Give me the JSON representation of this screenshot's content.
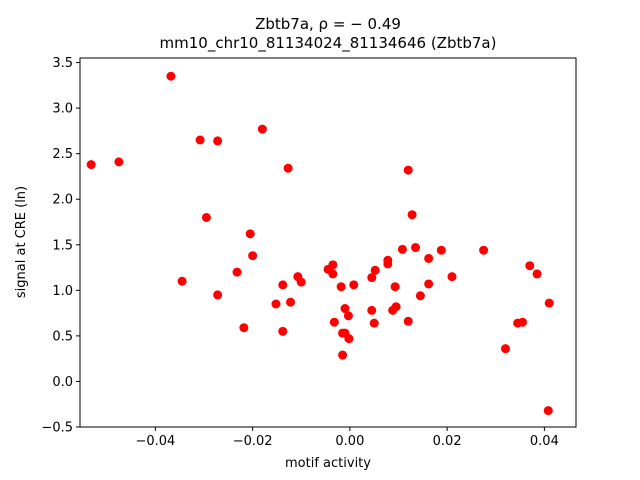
{
  "chart_data": {
    "type": "scatter",
    "title_line1": "Zbtb7a, ρ = − 0.49",
    "title_line2": "mm10_chr10_81134024_81134646 (Zbtb7a)",
    "xlabel": "motif activity",
    "ylabel": "signal at CRE (ln)",
    "xlim": [
      -0.0555,
      0.0465
    ],
    "ylim": [
      -0.5,
      3.55
    ],
    "xticks": [
      -0.04,
      -0.02,
      0.0,
      0.02,
      0.04
    ],
    "xtick_labels": [
      "−0.04",
      "−0.02",
      "0.00",
      "0.02",
      "0.04"
    ],
    "yticks": [
      -0.5,
      0.0,
      0.5,
      1.0,
      1.5,
      2.0,
      2.5,
      3.0,
      3.5
    ],
    "ytick_labels": [
      "−0.5",
      "0.0",
      "0.5",
      "1.0",
      "1.5",
      "2.0",
      "2.5",
      "3.0",
      "3.5"
    ],
    "grid": false,
    "marker_color": "#ff0000",
    "points": [
      {
        "x": -0.0532,
        "y": 2.38
      },
      {
        "x": -0.0475,
        "y": 2.41
      },
      {
        "x": -0.0368,
        "y": 3.35
      },
      {
        "x": -0.0345,
        "y": 1.1
      },
      {
        "x": -0.0308,
        "y": 2.65
      },
      {
        "x": -0.0295,
        "y": 1.8
      },
      {
        "x": -0.0272,
        "y": 2.64
      },
      {
        "x": -0.0272,
        "y": 0.95
      },
      {
        "x": -0.0232,
        "y": 1.2
      },
      {
        "x": -0.0218,
        "y": 0.59
      },
      {
        "x": -0.0205,
        "y": 1.62
      },
      {
        "x": -0.02,
        "y": 1.38
      },
      {
        "x": -0.018,
        "y": 2.77
      },
      {
        "x": -0.0152,
        "y": 0.85
      },
      {
        "x": -0.0138,
        "y": 1.06
      },
      {
        "x": -0.0138,
        "y": 0.55
      },
      {
        "x": -0.0127,
        "y": 2.34
      },
      {
        "x": -0.0122,
        "y": 0.87
      },
      {
        "x": -0.0107,
        "y": 1.15
      },
      {
        "x": -0.01,
        "y": 1.09
      },
      {
        "x": -0.0045,
        "y": 1.23
      },
      {
        "x": -0.0035,
        "y": 1.28
      },
      {
        "x": -0.0035,
        "y": 1.18
      },
      {
        "x": -0.0032,
        "y": 0.65
      },
      {
        "x": -0.0018,
        "y": 1.04
      },
      {
        "x": -0.0015,
        "y": 0.53
      },
      {
        "x": -0.0015,
        "y": 0.29
      },
      {
        "x": -0.001,
        "y": 0.8
      },
      {
        "x": -0.001,
        "y": 0.53
      },
      {
        "x": -0.0003,
        "y": 0.72
      },
      {
        "x": -0.0002,
        "y": 0.47
      },
      {
        "x": 0.0008,
        "y": 1.06
      },
      {
        "x": 0.0045,
        "y": 1.14
      },
      {
        "x": 0.0045,
        "y": 0.78
      },
      {
        "x": 0.005,
        "y": 0.64
      },
      {
        "x": 0.0052,
        "y": 1.22
      },
      {
        "x": 0.0078,
        "y": 1.33
      },
      {
        "x": 0.0078,
        "y": 1.29
      },
      {
        "x": 0.0088,
        "y": 0.78
      },
      {
        "x": 0.0093,
        "y": 1.04
      },
      {
        "x": 0.0095,
        "y": 0.82
      },
      {
        "x": 0.0108,
        "y": 1.45
      },
      {
        "x": 0.012,
        "y": 2.32
      },
      {
        "x": 0.012,
        "y": 0.66
      },
      {
        "x": 0.0128,
        "y": 1.83
      },
      {
        "x": 0.0135,
        "y": 1.47
      },
      {
        "x": 0.0145,
        "y": 0.94
      },
      {
        "x": 0.0162,
        "y": 1.07
      },
      {
        "x": 0.0162,
        "y": 1.35
      },
      {
        "x": 0.0188,
        "y": 1.44
      },
      {
        "x": 0.021,
        "y": 1.15
      },
      {
        "x": 0.0275,
        "y": 1.44
      },
      {
        "x": 0.032,
        "y": 0.36
      },
      {
        "x": 0.0345,
        "y": 0.64
      },
      {
        "x": 0.0355,
        "y": 0.65
      },
      {
        "x": 0.037,
        "y": 1.27
      },
      {
        "x": 0.0385,
        "y": 1.18
      },
      {
        "x": 0.041,
        "y": 0.86
      },
      {
        "x": 0.0408,
        "y": -0.32
      }
    ]
  }
}
